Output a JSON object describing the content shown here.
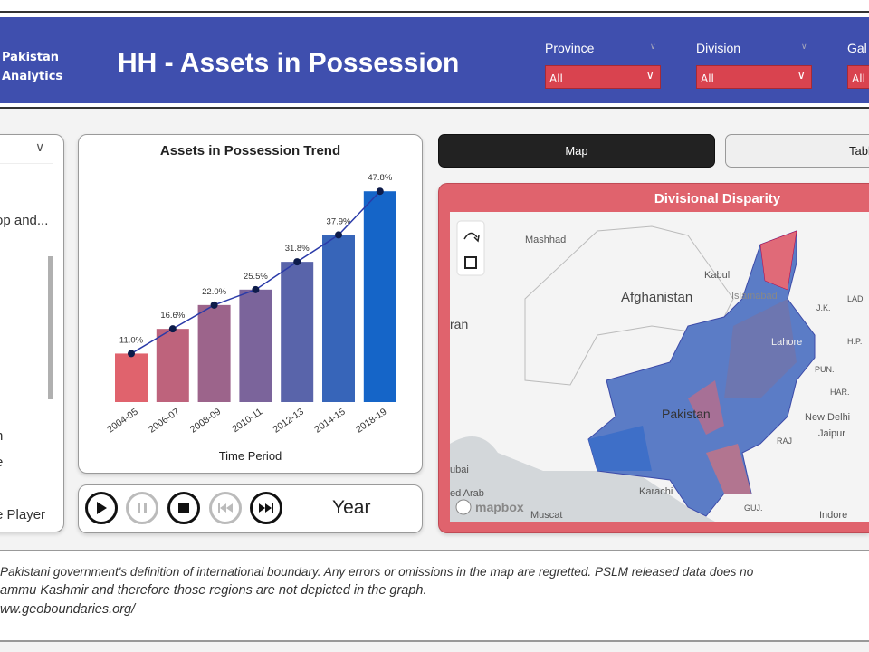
{
  "header": {
    "brand": [
      "Pakistan",
      "Analytics"
    ],
    "title": "HH - Assets in Possession",
    "slicers": [
      {
        "label": "Province",
        "value": "All"
      },
      {
        "label": "Division",
        "value": "All"
      },
      {
        "label": "Gal",
        "value": "All"
      }
    ]
  },
  "left_panel": {
    "items": [
      "op and...",
      "n",
      "e",
      "e Player"
    ]
  },
  "chart_data": {
    "type": "bar",
    "title": "Assets in Possession Trend",
    "xlabel": "Time Period",
    "ylabel": "",
    "categories": [
      "2004-05",
      "2006-07",
      "2008-09",
      "2010-11",
      "2012-13",
      "2014-15",
      "2018-19"
    ],
    "values": [
      11.0,
      16.6,
      22.0,
      25.5,
      31.8,
      37.9,
      47.8
    ],
    "data_labels": [
      "11.0%",
      "16.6%",
      "22.0%",
      "25.5%",
      "31.8%",
      "37.9%",
      "47.8%"
    ],
    "overlay": "line",
    "colors": [
      "#e0636d",
      "#1565c8"
    ]
  },
  "player": {
    "label": "Year",
    "buttons": [
      "play",
      "pause",
      "stop",
      "previous",
      "next"
    ]
  },
  "tabs": {
    "map": "Map",
    "table": "Tabl"
  },
  "map": {
    "title": "Divisional Disparity",
    "places": [
      "Mashhad",
      "Afghanistan",
      "Kabul",
      "Islamabad",
      "Lahore",
      "ran",
      "Pakistan",
      "New Delhi",
      "Jaipur",
      "Karachi",
      "ubai",
      "ed Arab",
      "Muscat",
      "Indore",
      "PUN.",
      "HAR.",
      "RAJ",
      "GUJ.",
      "J.K.",
      "LAD",
      "H.P."
    ],
    "attribution": "mapbox",
    "accent": "#e0636d"
  },
  "footer": {
    "lines": [
      "Pakistani government's definition of international boundary. Any errors or omissions in the map are regretted. PSLM released data does no",
      "ammu Kashmir and therefore those regions are not depicted in the graph.",
      "ww.geoboundaries.org/"
    ]
  }
}
